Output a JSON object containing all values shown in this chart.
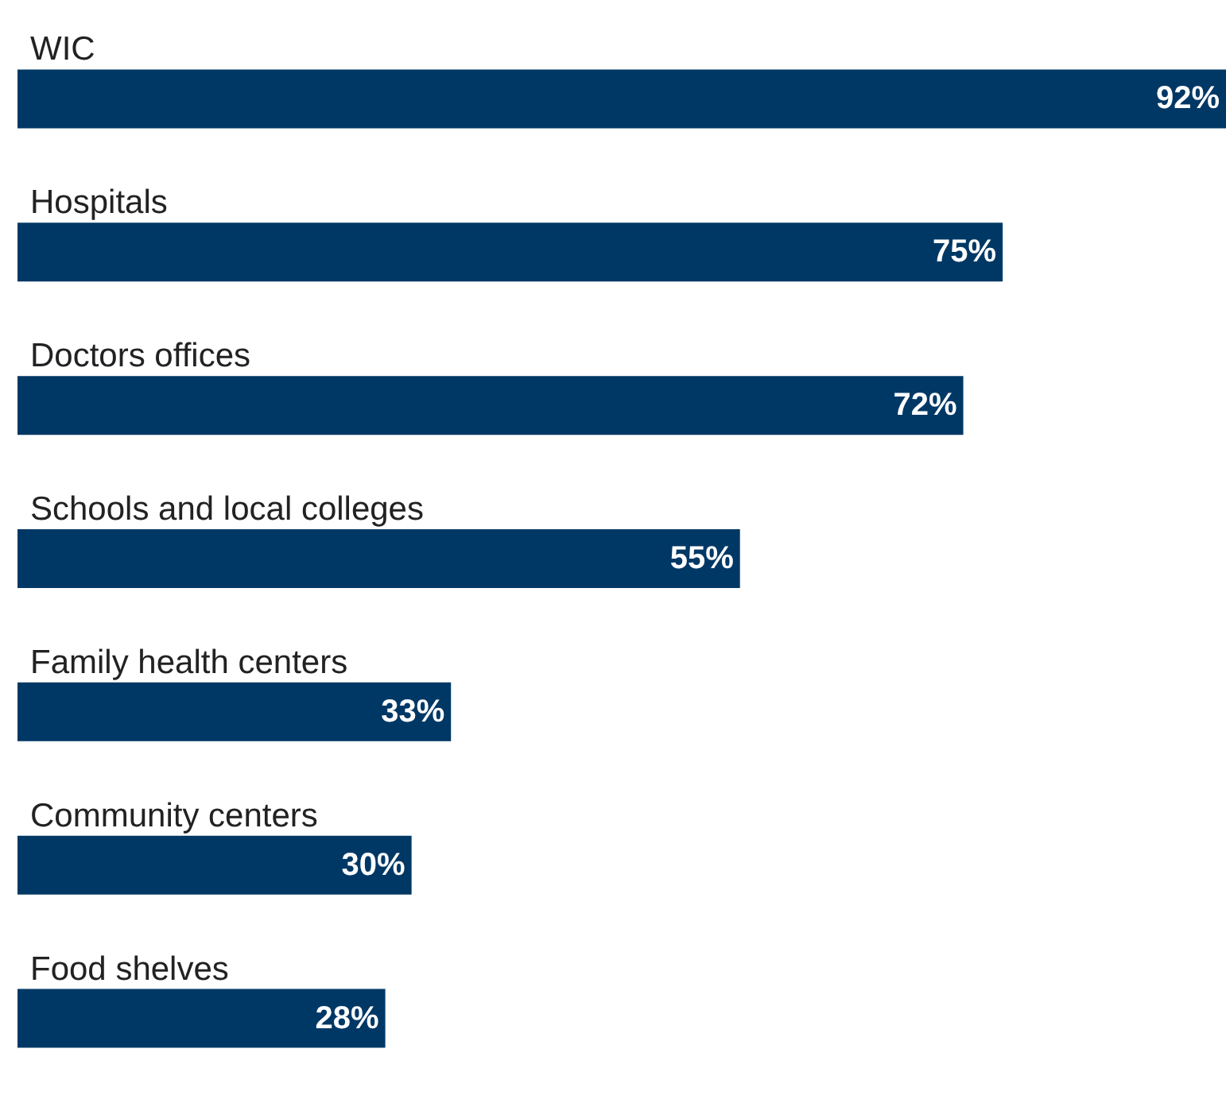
{
  "chart_data": {
    "type": "bar",
    "orientation": "horizontal",
    "categories": [
      "WIC",
      "Hospitals",
      "Doctors offices",
      "Schools and local colleges",
      "Family health centers",
      "Community centers",
      "Food shelves"
    ],
    "values": [
      92,
      75,
      72,
      55,
      33,
      30,
      28
    ],
    "value_labels": [
      "92%",
      "75%",
      "72%",
      "55%",
      "33%",
      "30%",
      "28%"
    ],
    "color": "#003865"
  }
}
